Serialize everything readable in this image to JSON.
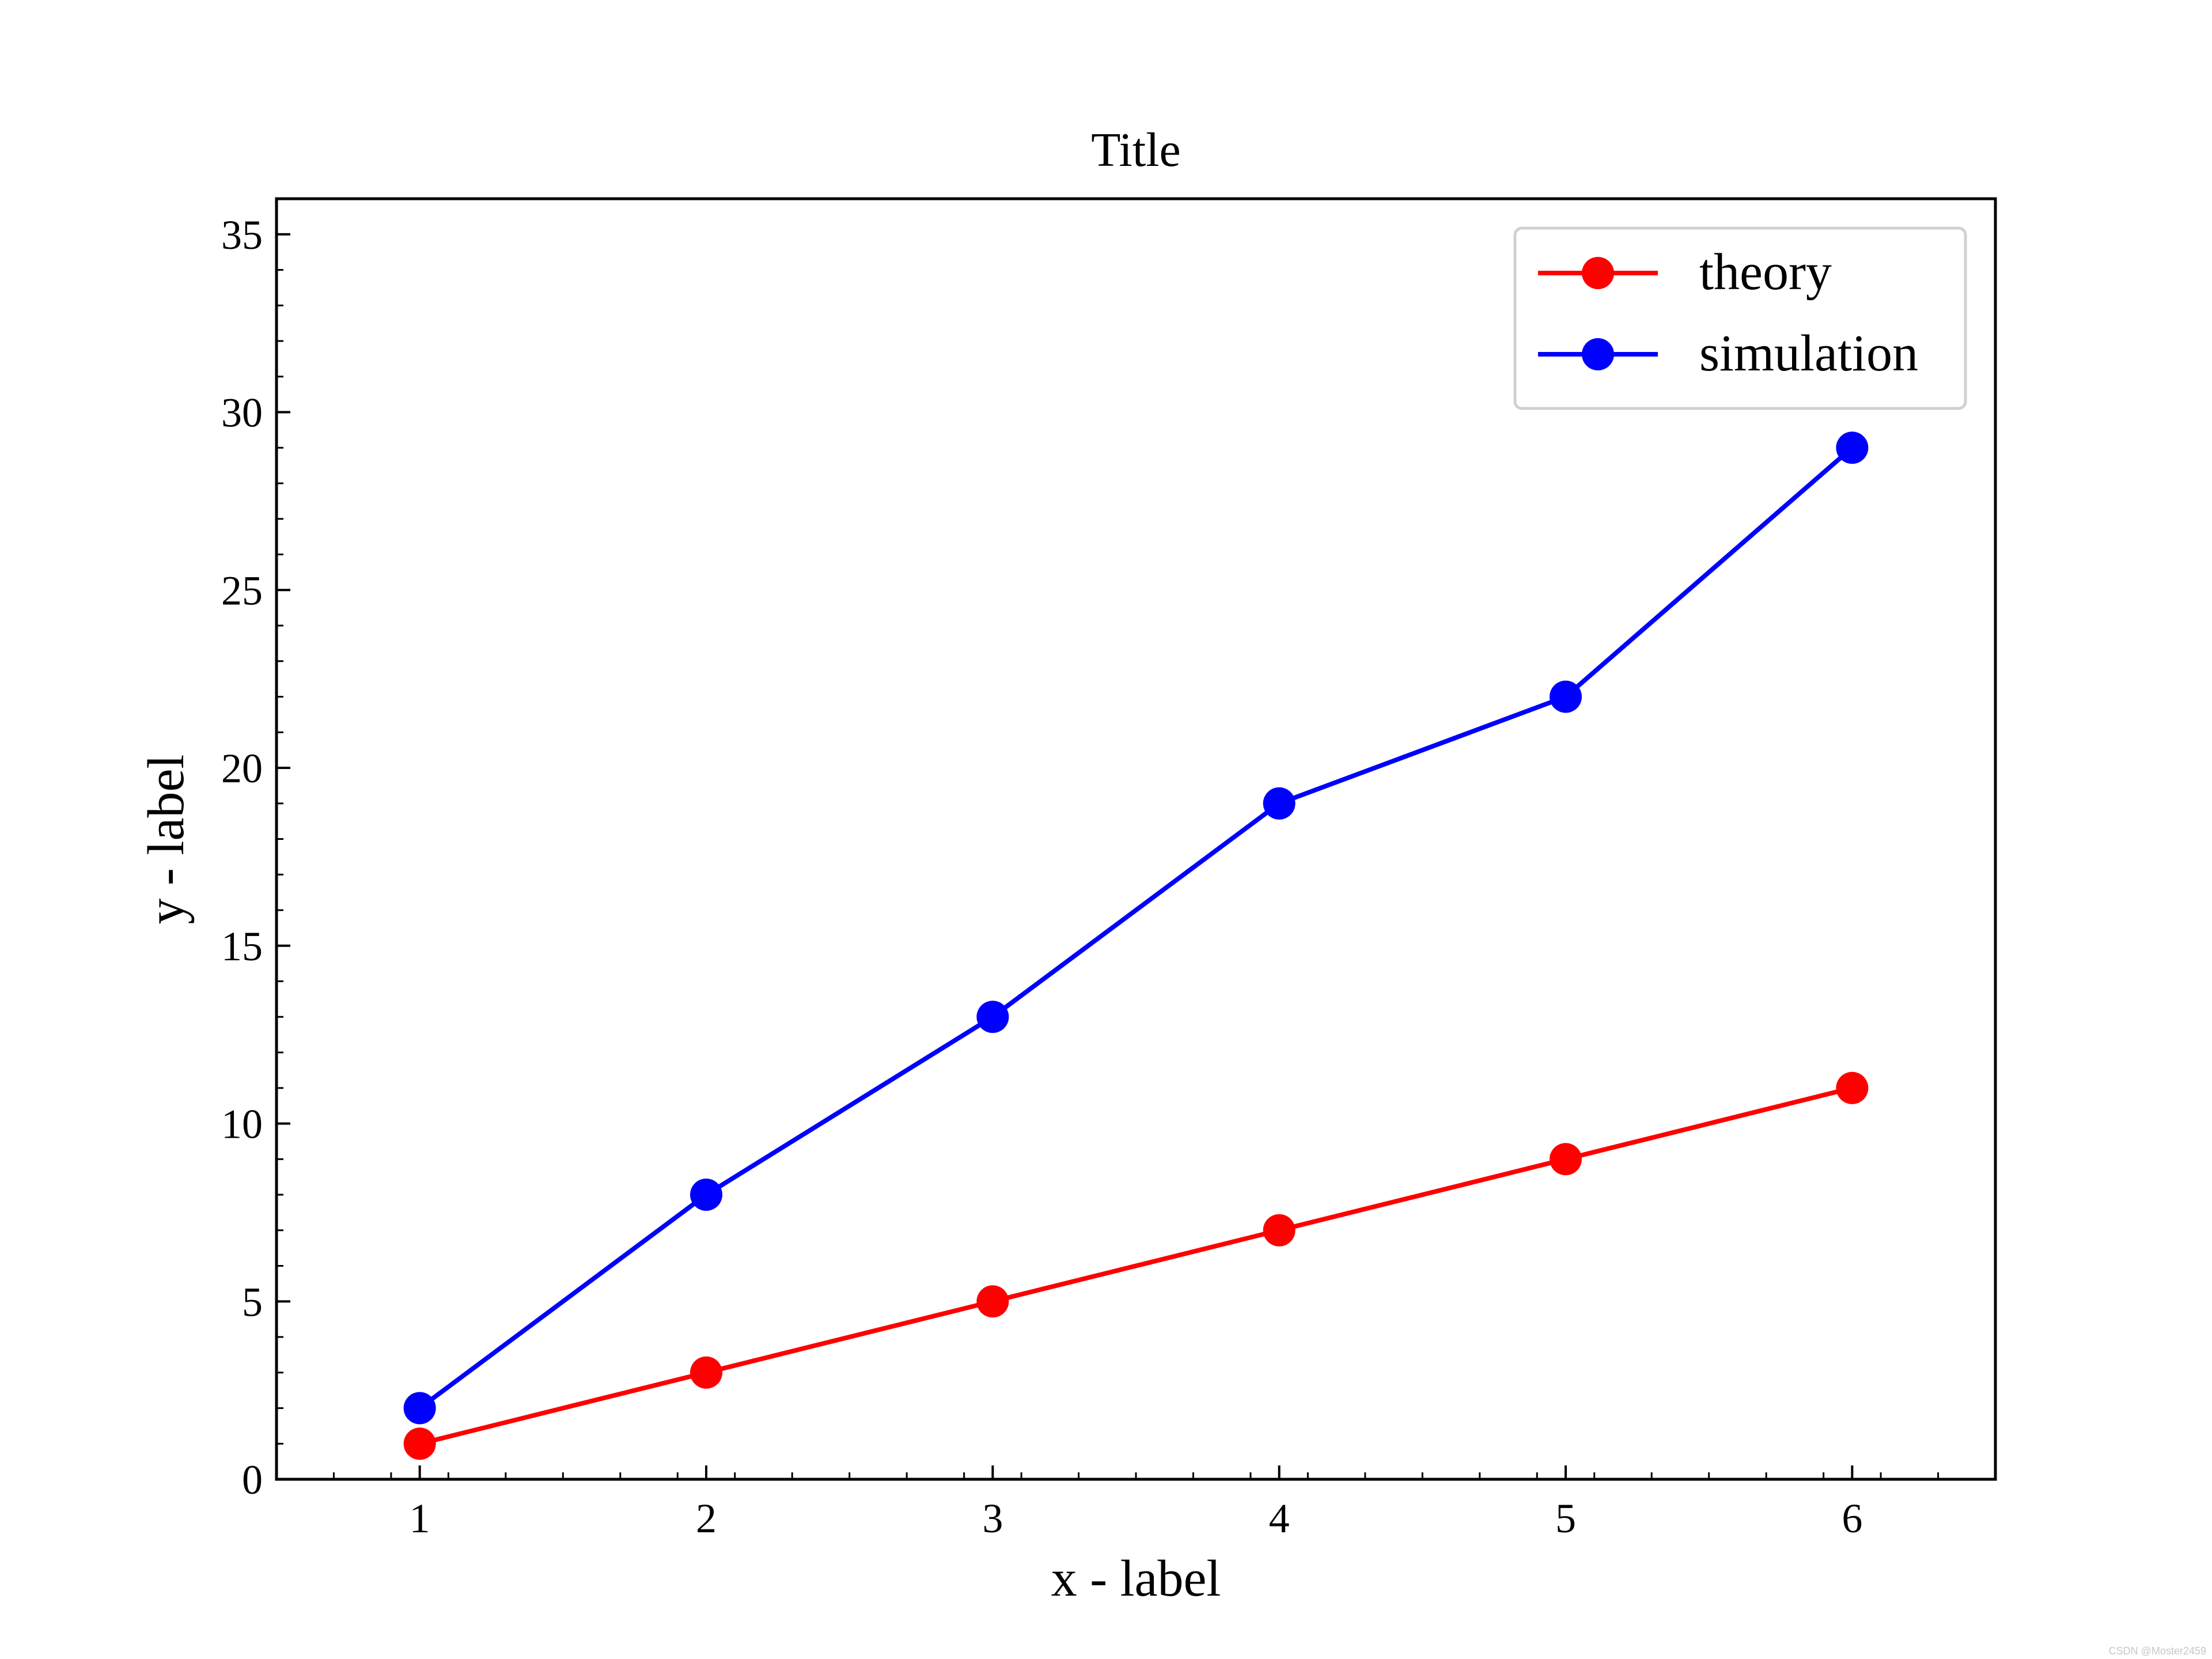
{
  "chart_data": {
    "type": "line",
    "title": "Title",
    "xlabel": "x - label",
    "ylabel": "y - label",
    "x": [
      1,
      2,
      3,
      4,
      5,
      6
    ],
    "xlim": [
      0.5,
      6.5
    ],
    "ylim": [
      0,
      36
    ],
    "xticks": [
      1,
      2,
      3,
      4,
      5,
      6
    ],
    "yticks": [
      0,
      5,
      10,
      15,
      20,
      25,
      30,
      35
    ],
    "grid": false,
    "legend_position": "top-right",
    "series": [
      {
        "name": "theory",
        "color": "#ff0000",
        "marker": "circle",
        "values": [
          1,
          3,
          5,
          7,
          9,
          11
        ]
      },
      {
        "name": "simulation",
        "color": "#0000ff",
        "marker": "circle",
        "values": [
          2,
          8,
          13,
          19,
          22,
          29
        ]
      }
    ]
  },
  "watermark": "CSDN @Moster2459"
}
